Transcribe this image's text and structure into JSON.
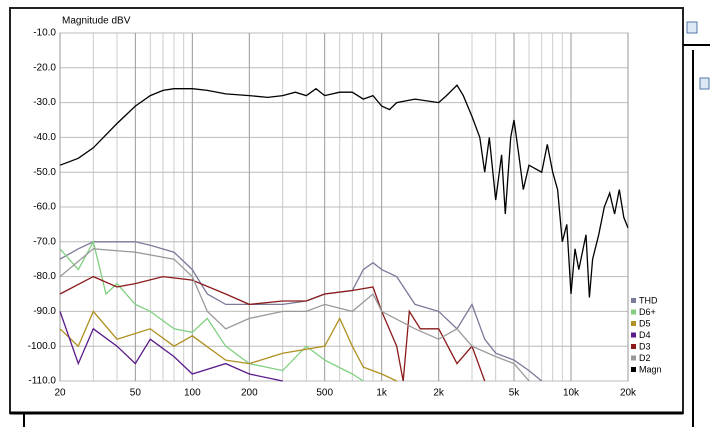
{
  "chart_data": {
    "type": "line",
    "y_label": "Magnitude dBV",
    "xscale": "log",
    "grid": true,
    "xlim": [
      20,
      20000
    ],
    "ylim": [
      -110,
      -10
    ],
    "xticks": [
      20,
      50,
      100,
      200,
      500,
      {
        "value": 1000,
        "label": "1k"
      },
      {
        "value": 2000,
        "label": "2k"
      },
      {
        "value": 5000,
        "label": "5k"
      },
      {
        "value": 10000,
        "label": "10k"
      },
      {
        "value": 20000,
        "label": "20k"
      }
    ],
    "xgrid": [
      30,
      40,
      60,
      70,
      80,
      90,
      300,
      400,
      600,
      700,
      800,
      900,
      3000,
      4000,
      6000,
      7000,
      8000,
      9000
    ],
    "yticks": [
      {
        "value": -10,
        "label": "-10.0"
      },
      {
        "value": -20,
        "label": "-20.0"
      },
      {
        "value": -30,
        "label": "-30.0"
      },
      {
        "value": -40,
        "label": "-40.0"
      },
      {
        "value": -50,
        "label": "-50.0"
      },
      {
        "value": -60,
        "label": "-60.0"
      },
      {
        "value": -70,
        "label": "-70.0"
      },
      {
        "value": -80,
        "label": "-80.0"
      },
      {
        "value": -90,
        "label": "-90.0"
      },
      {
        "value": -100,
        "label": "-100.0"
      },
      {
        "value": -110,
        "label": "-110.0"
      }
    ],
    "legend": "lower right",
    "series": [
      {
        "name": "THD",
        "color": "#7a7a9a",
        "x": [
          20,
          25,
          30,
          40,
          50,
          60,
          80,
          100,
          120,
          150,
          200,
          300,
          400,
          500,
          700,
          800,
          900,
          1000,
          1200,
          1500,
          2000,
          2500,
          3000,
          3500,
          4000,
          5000,
          6000,
          7000
        ],
        "values": [
          -75,
          -72,
          -70,
          -70,
          -70,
          -71,
          -73,
          -78,
          -85,
          -88,
          -88,
          -88,
          -87,
          -85,
          -84,
          -78,
          -76,
          -78,
          -80,
          -88,
          -90,
          -95,
          -88,
          -98,
          -102,
          -104,
          -107,
          -110
        ]
      },
      {
        "name": "D6+",
        "color": "#80d080",
        "x": [
          20,
          25,
          30,
          35,
          40,
          50,
          60,
          80,
          100,
          120,
          150,
          200,
          300,
          400,
          500,
          700,
          800
        ],
        "values": [
          -72,
          -78,
          -70,
          -85,
          -82,
          -88,
          -90,
          -95,
          -96,
          -92,
          -100,
          -105,
          -107,
          -100,
          -104,
          -108,
          -110
        ]
      },
      {
        "name": "D5",
        "color": "#b09020",
        "x": [
          20,
          25,
          30,
          40,
          60,
          80,
          100,
          150,
          200,
          300,
          500,
          600,
          700,
          800,
          1000,
          1200
        ],
        "values": [
          -95,
          -100,
          -90,
          -98,
          -95,
          -100,
          -97,
          -104,
          -105,
          -102,
          -100,
          -92,
          -100,
          -106,
          -108,
          -110
        ]
      },
      {
        "name": "D4",
        "color": "#5a1a8a",
        "x": [
          20,
          25,
          30,
          40,
          50,
          60,
          80,
          100,
          150,
          200,
          300
        ],
        "values": [
          -90,
          -105,
          -95,
          -100,
          -105,
          -98,
          -103,
          -108,
          -105,
          -108,
          -110
        ]
      },
      {
        "name": "D3",
        "color": "#8b1a1a",
        "x": [
          20,
          30,
          40,
          50,
          70,
          100,
          150,
          200,
          300,
          400,
          500,
          700,
          900,
          1000,
          1200,
          1300,
          1400,
          1600,
          2000,
          2500,
          3000,
          3500
        ],
        "values": [
          -85,
          -80,
          -83,
          -82,
          -80,
          -81,
          -85,
          -88,
          -87,
          -87,
          -85,
          -84,
          -83,
          -90,
          -100,
          -110,
          -90,
          -95,
          -95,
          -105,
          -100,
          -110
        ]
      },
      {
        "name": "D2",
        "color": "#9a9a9a",
        "x": [
          20,
          30,
          50,
          80,
          100,
          120,
          150,
          200,
          300,
          400,
          500,
          700,
          900,
          1000,
          1500,
          2000,
          2500,
          3000,
          4000,
          5000,
          6000
        ],
        "values": [
          -80,
          -72,
          -73,
          -75,
          -80,
          -90,
          -95,
          -92,
          -90,
          -90,
          -88,
          -90,
          -85,
          -90,
          -95,
          -98,
          -95,
          -100,
          -103,
          -105,
          -110
        ]
      },
      {
        "name": "Magn",
        "color": "#000000",
        "x": [
          20,
          25,
          30,
          40,
          50,
          60,
          70,
          80,
          100,
          120,
          150,
          200,
          250,
          300,
          350,
          400,
          450,
          500,
          600,
          700,
          800,
          900,
          1000,
          1100,
          1200,
          1500,
          2000,
          2200,
          2500,
          2700,
          3000,
          3300,
          3500,
          3700,
          4000,
          4300,
          4500,
          4800,
          5000,
          5300,
          5600,
          6000,
          7000,
          7500,
          8000,
          8500,
          9000,
          9500,
          10000,
          10500,
          11000,
          12000,
          12500,
          13000,
          14000,
          15000,
          16000,
          17000,
          18000,
          19000,
          20000
        ],
        "values": [
          -48,
          -46,
          -43,
          -36,
          -31,
          -28,
          -26.5,
          -26,
          -26,
          -26.5,
          -27.5,
          -28,
          -28.5,
          -28,
          -27,
          -28,
          -26,
          -28,
          -27,
          -27,
          -29,
          -28,
          -31,
          -32,
          -30,
          -29,
          -30,
          -28,
          -25,
          -28,
          -34,
          -40,
          -50,
          -40,
          -58,
          -45,
          -62,
          -40,
          -35,
          -45,
          -55,
          -48,
          -50,
          -42,
          -50,
          -55,
          -70,
          -65,
          -85,
          -72,
          -78,
          -68,
          -86,
          -75,
          -68,
          -60,
          -56,
          -62,
          -55,
          -63,
          -66
        ]
      }
    ]
  }
}
